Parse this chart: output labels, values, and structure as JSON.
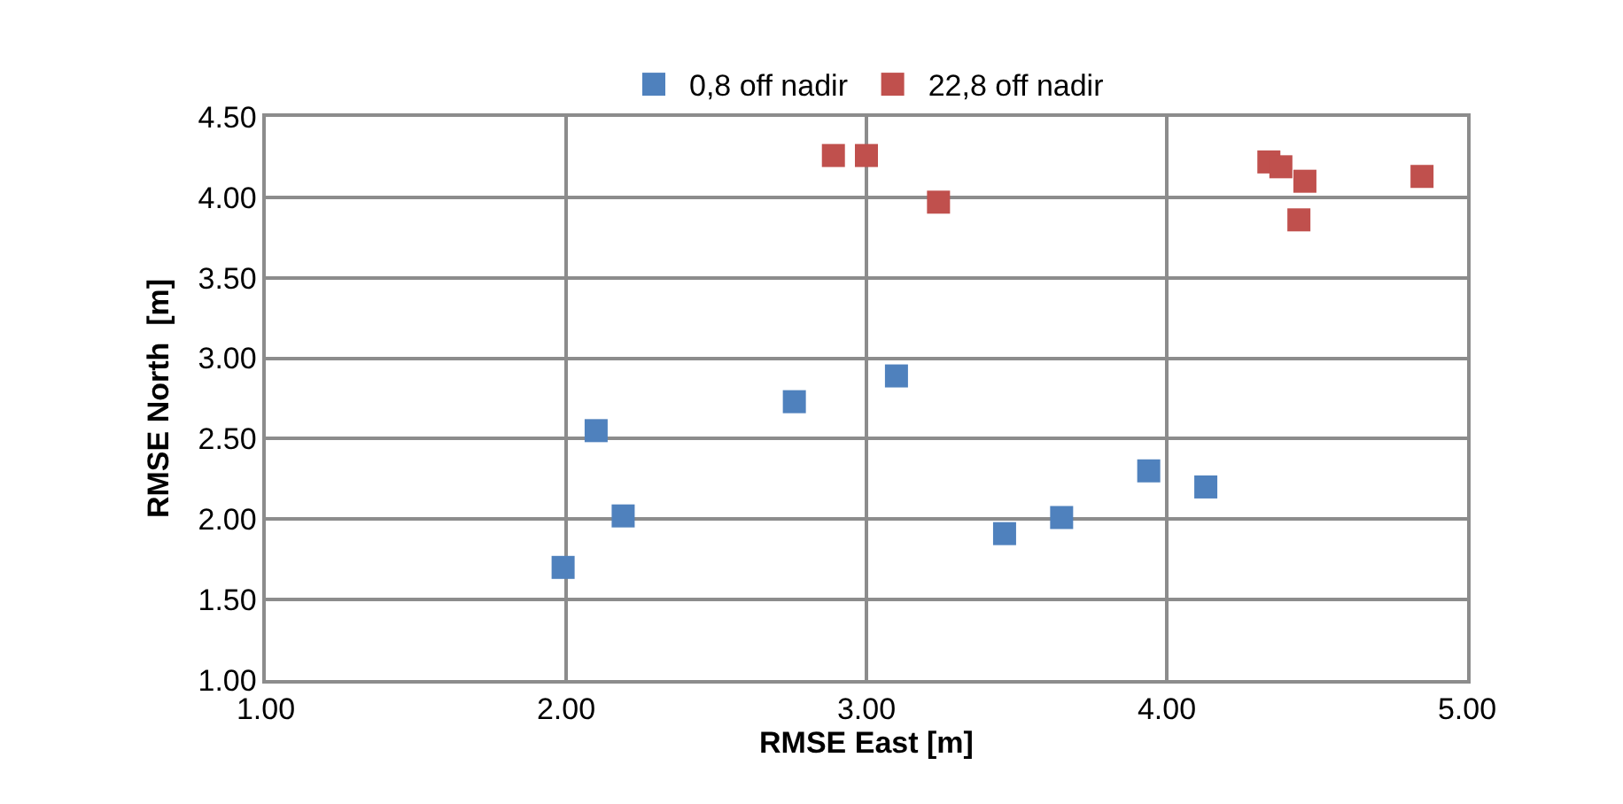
{
  "chart_data": {
    "type": "scatter",
    "xlabel": "RMSE East [m]",
    "ylabel": "RMSE North  [m]",
    "xlim": [
      1.0,
      5.0
    ],
    "xticks": [
      {
        "value": 1,
        "label": "1.00"
      },
      {
        "value": 2,
        "label": "2.00"
      },
      {
        "value": 3,
        "label": "3.00"
      },
      {
        "value": 4,
        "label": "4.00"
      },
      {
        "value": 5,
        "label": "5.00"
      }
    ],
    "ylim": [
      1.0,
      4.5
    ],
    "yticks": [
      {
        "value": 1,
        "label": "1.00"
      },
      {
        "value": 1.5,
        "label": "1.50"
      },
      {
        "value": 2,
        "label": "2.00"
      },
      {
        "value": 2.5,
        "label": "2.50"
      },
      {
        "value": 3,
        "label": "3.00"
      },
      {
        "value": 3.5,
        "label": "3.50"
      },
      {
        "value": 4,
        "label": "4.00"
      },
      {
        "value": 4.5,
        "label": "4.50"
      }
    ],
    "grid": true,
    "legend": "top",
    "marker": "square",
    "series": [
      {
        "name": "0,8 off nadir",
        "color": "#4f81bd",
        "x": [
          1.99,
          2.1,
          2.19,
          2.76,
          3.1,
          3.46,
          3.65,
          3.94,
          4.13
        ],
        "values": [
          1.7,
          2.55,
          2.02,
          2.73,
          2.89,
          1.91,
          2.01,
          2.3,
          2.2
        ]
      },
      {
        "name": "22,8 off nadir",
        "color": "#c0504d",
        "x": [
          2.89,
          3.0,
          3.24,
          4.34,
          4.38,
          4.46,
          4.44,
          4.85
        ],
        "values": [
          4.26,
          4.26,
          3.97,
          4.22,
          4.19,
          4.1,
          3.86,
          4.13
        ]
      }
    ]
  }
}
